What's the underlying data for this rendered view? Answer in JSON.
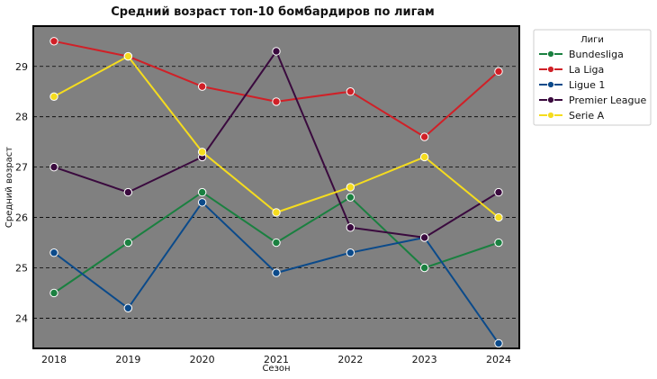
{
  "chart_data": {
    "type": "line",
    "title": "Средний возраст топ-10 бомбардиров по лигам",
    "xlabel": "Сезон",
    "ylabel": "Средний возраст",
    "x": [
      2018,
      2019,
      2020,
      2021,
      2022,
      2023,
      2024
    ],
    "yticks": [
      24,
      25,
      26,
      27,
      28,
      29
    ],
    "ylim": [
      23.4,
      29.8
    ],
    "grid": "horizontal dashed",
    "plot_background": "#808080",
    "legend": {
      "title": "Лиги",
      "placement": "outside-right"
    },
    "series": [
      {
        "name": "Bundesliga",
        "color": "#1a8040",
        "values": [
          24.5,
          25.5,
          26.5,
          25.5,
          26.4,
          25.0,
          25.5
        ]
      },
      {
        "name": "La Liga",
        "color": "#d02027",
        "values": [
          29.5,
          29.2,
          28.6,
          28.3,
          28.5,
          27.6,
          28.9
        ]
      },
      {
        "name": "Ligue 1",
        "color": "#0b4a8a",
        "values": [
          25.3,
          24.2,
          26.3,
          24.9,
          25.3,
          25.6,
          23.5
        ]
      },
      {
        "name": "Premier League",
        "color": "#3a0a3e",
        "values": [
          27.0,
          26.5,
          27.2,
          29.3,
          25.8,
          25.6,
          26.5
        ]
      },
      {
        "name": "Serie A",
        "color": "#f5dc1e",
        "values": [
          28.4,
          29.2,
          27.3,
          26.1,
          26.6,
          27.2,
          26.0
        ]
      }
    ]
  }
}
